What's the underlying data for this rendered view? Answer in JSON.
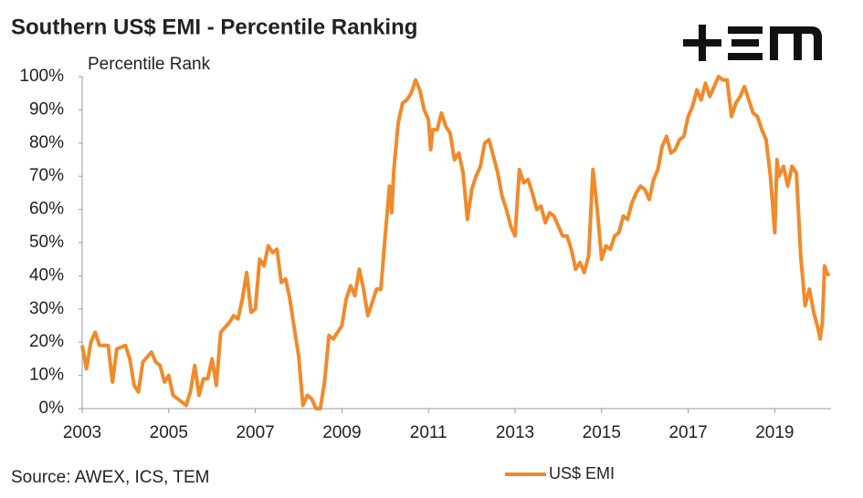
{
  "chart_data": {
    "type": "line",
    "title": "Southern US$ EMI - Percentile Ranking",
    "y_label": "Percentile Rank",
    "source": "Source: AWEX, ICS, TEM",
    "xlim": [
      2003,
      2020.3
    ],
    "xticks": [
      2003,
      2005,
      2007,
      2009,
      2011,
      2013,
      2015,
      2017,
      2019
    ],
    "ylim": [
      0,
      100
    ],
    "yticks": [
      {
        "value": 0,
        "label": "0%"
      },
      {
        "value": 10,
        "label": "10%"
      },
      {
        "value": 20,
        "label": "20%"
      },
      {
        "value": 30,
        "label": "30%"
      },
      {
        "value": 40,
        "label": "40%"
      },
      {
        "value": 50,
        "label": "50%"
      },
      {
        "value": 60,
        "label": "60%"
      },
      {
        "value": 70,
        "label": "70%"
      },
      {
        "value": 80,
        "label": "80%"
      },
      {
        "value": 90,
        "label": "90%"
      },
      {
        "value": 100,
        "label": "100%"
      }
    ],
    "legend": "bottom",
    "x": [
      2003.0,
      2003.1,
      2003.2,
      2003.3,
      2003.4,
      2003.6,
      2003.7,
      2003.8,
      2004.0,
      2004.1,
      2004.2,
      2004.3,
      2004.4,
      2004.6,
      2004.7,
      2004.8,
      2004.9,
      2005.0,
      2005.1,
      2005.3,
      2005.4,
      2005.5,
      2005.6,
      2005.7,
      2005.8,
      2005.9,
      2006.0,
      2006.1,
      2006.2,
      2006.4,
      2006.5,
      2006.6,
      2006.7,
      2006.8,
      2006.9,
      2007.0,
      2007.1,
      2007.2,
      2007.3,
      2007.4,
      2007.5,
      2007.6,
      2007.7,
      2007.8,
      2007.9,
      2008.0,
      2008.1,
      2008.2,
      2008.3,
      2008.4,
      2008.5,
      2008.6,
      2008.7,
      2008.8,
      2009.0,
      2009.1,
      2009.2,
      2009.3,
      2009.4,
      2009.5,
      2009.6,
      2009.7,
      2009.8,
      2009.9,
      2010.0,
      2010.1,
      2010.15,
      2010.2,
      2010.3,
      2010.4,
      2010.5,
      2010.6,
      2010.7,
      2010.8,
      2010.9,
      2011.0,
      2011.05,
      2011.1,
      2011.2,
      2011.3,
      2011.4,
      2011.5,
      2011.6,
      2011.7,
      2011.8,
      2011.9,
      2012.0,
      2012.1,
      2012.2,
      2012.3,
      2012.4,
      2012.5,
      2012.6,
      2012.7,
      2012.8,
      2012.9,
      2013.0,
      2013.1,
      2013.2,
      2013.3,
      2013.4,
      2013.5,
      2013.6,
      2013.7,
      2013.8,
      2013.9,
      2014.0,
      2014.1,
      2014.2,
      2014.3,
      2014.4,
      2014.5,
      2014.6,
      2014.7,
      2014.8,
      2014.9,
      2015.0,
      2015.1,
      2015.2,
      2015.3,
      2015.4,
      2015.5,
      2015.6,
      2015.7,
      2015.8,
      2015.9,
      2016.0,
      2016.1,
      2016.2,
      2016.3,
      2016.4,
      2016.5,
      2016.6,
      2016.7,
      2016.8,
      2016.9,
      2017.0,
      2017.1,
      2017.2,
      2017.3,
      2017.4,
      2017.5,
      2017.6,
      2017.7,
      2017.8,
      2017.9,
      2018.0,
      2018.1,
      2018.2,
      2018.3,
      2018.4,
      2018.5,
      2018.6,
      2018.7,
      2018.8,
      2018.9,
      2019.0,
      2019.05,
      2019.1,
      2019.2,
      2019.3,
      2019.4,
      2019.5,
      2019.6,
      2019.7,
      2019.8,
      2019.9,
      2020.0,
      2020.05,
      2020.1,
      2020.15,
      2020.2,
      2020.25
    ],
    "series": [
      {
        "name": "US$ EMI",
        "color": "#f08a2c",
        "values": [
          19,
          12,
          20,
          23,
          19,
          19,
          8,
          18,
          19,
          15,
          7,
          5,
          14,
          17,
          14,
          13,
          8,
          10,
          4,
          2,
          1,
          5,
          13,
          4,
          9,
          9,
          15,
          7,
          23,
          26,
          28,
          27,
          33,
          41,
          29,
          30,
          45,
          43,
          49,
          47,
          48,
          38,
          39,
          33,
          24,
          16,
          1,
          4,
          3,
          0,
          0,
          8,
          22,
          21,
          25,
          33,
          37,
          34,
          42,
          36,
          28,
          32,
          36,
          36,
          52,
          67,
          59,
          72,
          86,
          92,
          93,
          95,
          99,
          96,
          90,
          87,
          78,
          84,
          84,
          89,
          85,
          83,
          75,
          77,
          71,
          57,
          66,
          70,
          73,
          80,
          81,
          76,
          71,
          64,
          60,
          55,
          52,
          72,
          68,
          69,
          65,
          60,
          61,
          56,
          59,
          58,
          55,
          52,
          52,
          48,
          42,
          44,
          41,
          46,
          72,
          60,
          45,
          49,
          48,
          52,
          53,
          58,
          57,
          62,
          65,
          67,
          66,
          63,
          69,
          72,
          79,
          82,
          77,
          78,
          81,
          82,
          88,
          91,
          96,
          93,
          98,
          94,
          97,
          100,
          99,
          99,
          88,
          92,
          94,
          97,
          93,
          89,
          88,
          84,
          81,
          70,
          53,
          75,
          70,
          73,
          67,
          73,
          71,
          46,
          31,
          36,
          29,
          24,
          21,
          26,
          43,
          41,
          40
        ]
      }
    ]
  }
}
